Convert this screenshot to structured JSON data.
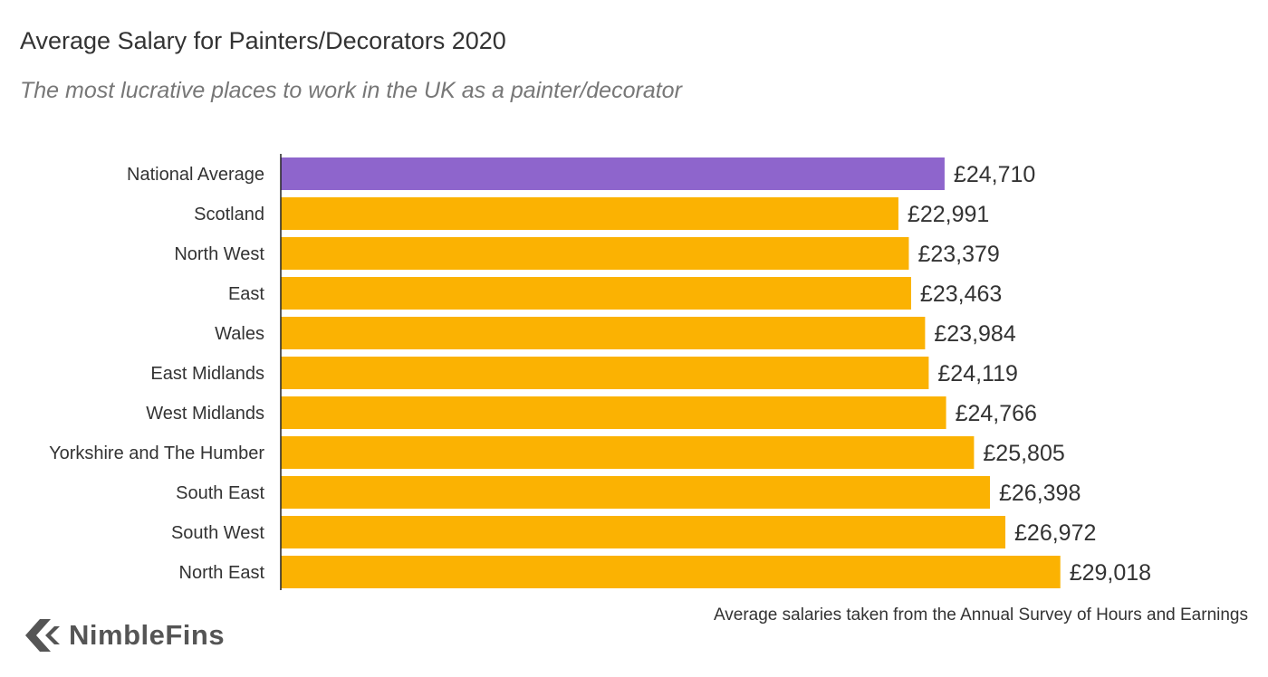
{
  "chart_data": {
    "type": "bar",
    "orientation": "horizontal",
    "title": "Average Salary for Painters/Decorators 2020",
    "subtitle": "The most lucrative places to work in the UK as a painter/decorator",
    "xlabel": "",
    "ylabel": "",
    "xlim": [
      0,
      29500
    ],
    "grid": false,
    "categories": [
      "National Average",
      "Scotland",
      "North West",
      "East",
      "Wales",
      "East Midlands",
      "West Midlands",
      "Yorkshire and The Humber",
      "South East",
      "South West",
      "North East"
    ],
    "values": [
      24710,
      22991,
      23379,
      23463,
      23984,
      24119,
      24766,
      25805,
      26398,
      26972,
      29018
    ],
    "value_labels": [
      "£24,710",
      "£22,991",
      "£23,379",
      "£23,463",
      "£23,984",
      "£24,119",
      "£24,766",
      "£25,805",
      "£26,398",
      "£26,972",
      "£29,018"
    ],
    "highlight_category": "National Average",
    "colors": {
      "highlight": "#8e65cc",
      "default": "#fbb202",
      "axis": "#222222"
    }
  },
  "footer": {
    "source_note": "Average salaries taken from the Annual Survey of Hours and Earnings",
    "brand": "NimbleFins",
    "logo_icon": "chevron-left-logo-icon"
  }
}
